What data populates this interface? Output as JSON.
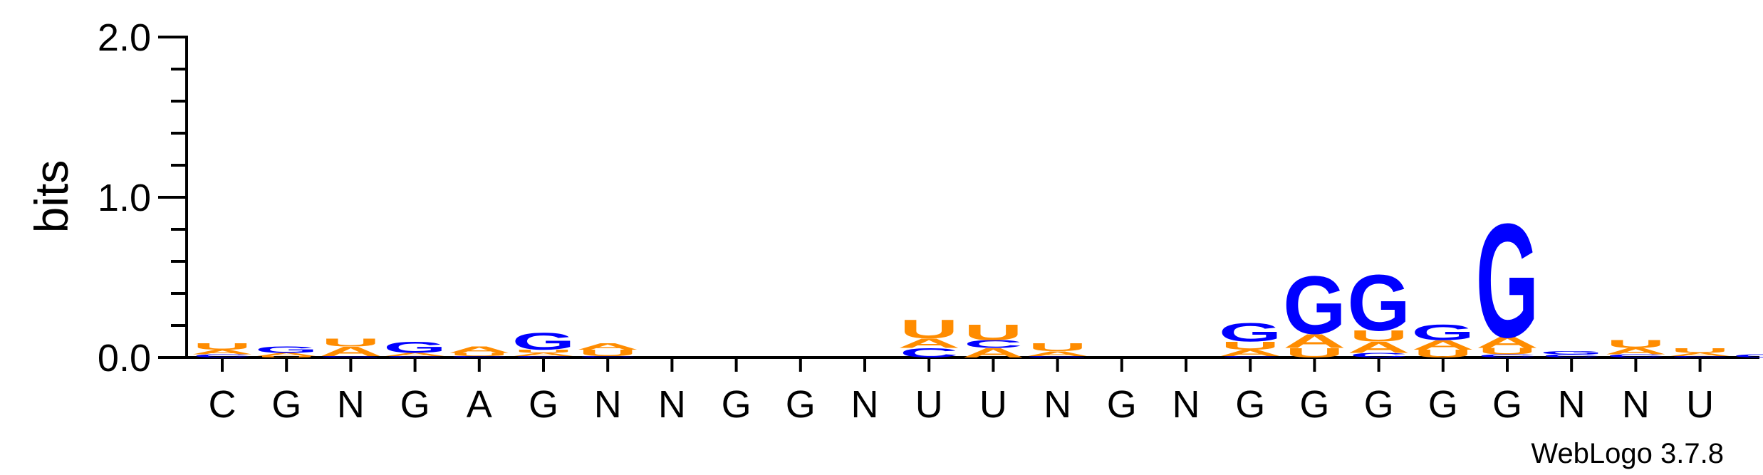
{
  "chart_data": {
    "type": "sequence-logo",
    "title": "",
    "xlabel": "",
    "ylabel": "bits",
    "ylim": [
      0,
      2.0
    ],
    "yticks": [
      "0.0",
      "1.0",
      "2.0"
    ],
    "credit": "WebLogo 3.7.8",
    "colors": {
      "G": "#0000ff",
      "C": "#0000ff",
      "A": "#ff8c00",
      "U": "#ff8c00"
    },
    "positions": [
      {
        "label": "C",
        "stack": [
          {
            "letter": "C",
            "bits": 0.02
          },
          {
            "letter": "A",
            "bits": 0.03
          },
          {
            "letter": "U",
            "bits": 0.04
          }
        ]
      },
      {
        "label": "G",
        "stack": [
          {
            "letter": "U",
            "bits": 0.01
          },
          {
            "letter": "A",
            "bits": 0.02
          },
          {
            "letter": "G",
            "bits": 0.04
          }
        ]
      },
      {
        "label": "N",
        "stack": [
          {
            "letter": "G",
            "bits": 0.01
          },
          {
            "letter": "A",
            "bits": 0.06
          },
          {
            "letter": "U",
            "bits": 0.05
          }
        ]
      },
      {
        "label": "G",
        "stack": [
          {
            "letter": "C",
            "bits": 0.01
          },
          {
            "letter": "A",
            "bits": 0.02
          },
          {
            "letter": "G",
            "bits": 0.07
          }
        ]
      },
      {
        "label": "A",
        "stack": [
          {
            "letter": "C",
            "bits": 0.01
          },
          {
            "letter": "U",
            "bits": 0.02
          },
          {
            "letter": "A",
            "bits": 0.04
          }
        ]
      },
      {
        "label": "G",
        "stack": [
          {
            "letter": "C",
            "bits": 0.01
          },
          {
            "letter": "A",
            "bits": 0.02
          },
          {
            "letter": "U",
            "bits": 0.02
          },
          {
            "letter": "G",
            "bits": 0.11
          }
        ]
      },
      {
        "label": "N",
        "stack": [
          {
            "letter": "C",
            "bits": 0.01
          },
          {
            "letter": "U",
            "bits": 0.04
          },
          {
            "letter": "A",
            "bits": 0.04
          }
        ]
      },
      {
        "label": "N",
        "stack": []
      },
      {
        "label": "G",
        "stack": []
      },
      {
        "label": "G",
        "stack": []
      },
      {
        "label": "N",
        "stack": []
      },
      {
        "label": "U",
        "stack": [
          {
            "letter": "C",
            "bits": 0.06
          },
          {
            "letter": "A",
            "bits": 0.06
          },
          {
            "letter": "U",
            "bits": 0.12
          }
        ]
      },
      {
        "label": "U",
        "stack": [
          {
            "letter": "A",
            "bits": 0.06
          },
          {
            "letter": "C",
            "bits": 0.05
          },
          {
            "letter": "U",
            "bits": 0.1
          }
        ]
      },
      {
        "label": "N",
        "stack": [
          {
            "letter": "G",
            "bits": 0.01
          },
          {
            "letter": "A",
            "bits": 0.03
          },
          {
            "letter": "U",
            "bits": 0.05
          }
        ]
      },
      {
        "label": "G",
        "stack": []
      },
      {
        "label": "N",
        "stack": []
      },
      {
        "label": "G",
        "stack": [
          {
            "letter": "C",
            "bits": 0.01
          },
          {
            "letter": "A",
            "bits": 0.04
          },
          {
            "letter": "U",
            "bits": 0.05
          },
          {
            "letter": "G",
            "bits": 0.12
          }
        ]
      },
      {
        "label": "G",
        "stack": [
          {
            "letter": "U",
            "bits": 0.06
          },
          {
            "letter": "A",
            "bits": 0.09
          },
          {
            "letter": "G",
            "bits": 0.37
          }
        ]
      },
      {
        "label": "G",
        "stack": [
          {
            "letter": "C",
            "bits": 0.03
          },
          {
            "letter": "A",
            "bits": 0.07
          },
          {
            "letter": "U",
            "bits": 0.07
          },
          {
            "letter": "G",
            "bits": 0.36
          }
        ]
      },
      {
        "label": "G",
        "stack": [
          {
            "letter": "U",
            "bits": 0.05
          },
          {
            "letter": "A",
            "bits": 0.06
          },
          {
            "letter": "G",
            "bits": 0.1
          }
        ]
      },
      {
        "label": "G",
        "stack": [
          {
            "letter": "C",
            "bits": 0.02
          },
          {
            "letter": "U",
            "bits": 0.04
          },
          {
            "letter": "A",
            "bits": 0.07
          },
          {
            "letter": "G",
            "bits": 0.73
          }
        ]
      },
      {
        "label": "N",
        "stack": [
          {
            "letter": "C",
            "bits": 0.02
          },
          {
            "letter": "G",
            "bits": 0.02
          }
        ]
      },
      {
        "label": "N",
        "stack": [
          {
            "letter": "C",
            "bits": 0.02
          },
          {
            "letter": "A",
            "bits": 0.04
          },
          {
            "letter": "U",
            "bits": 0.05
          }
        ]
      },
      {
        "label": "U",
        "stack": [
          {
            "letter": "C",
            "bits": 0.01
          },
          {
            "letter": "A",
            "bits": 0.02
          },
          {
            "letter": "U",
            "bits": 0.03
          }
        ]
      },
      {
        "label": "",
        "stack": [
          {
            "letter": "G",
            "bits": 0.02
          }
        ]
      }
    ]
  }
}
